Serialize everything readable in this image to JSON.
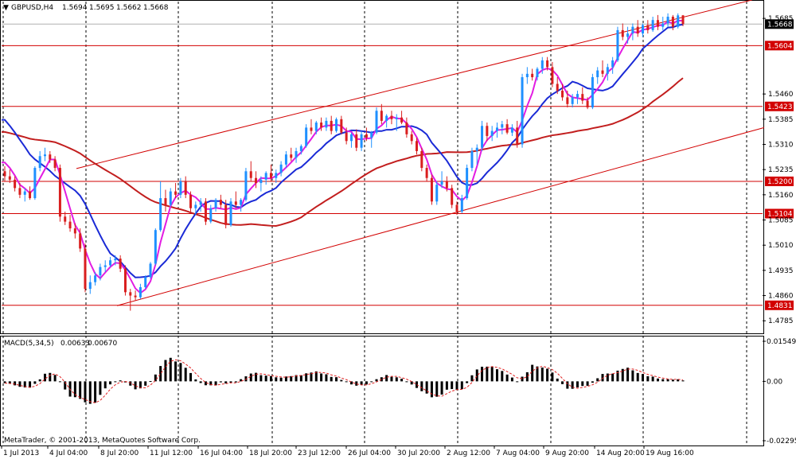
{
  "chart_data": [
    {
      "type": "candlestick",
      "title": "GBPUSD,H4",
      "ohlc_header": [
        "1.5694",
        "1.5695",
        "1.5662",
        "1.5668"
      ],
      "ylim": [
        1.475,
        1.5735
      ],
      "yticks": [
        "1.5685",
        "1.5460",
        "1.5385",
        "1.5310",
        "1.5235",
        "1.5160",
        "1.5085",
        "1.5010",
        "1.4935",
        "1.4860",
        "1.4785"
      ],
      "xticks": [
        "1 Jul 2013",
        "4 Jul 04:00",
        "8 Jul 20:00",
        "11 Jul 12:00",
        "16 Jul 04:00",
        "18 Jul 20:00",
        "23 Jul 12:00",
        "26 Jul 04:00",
        "30 Jul 20:00",
        "2 Aug 12:00",
        "7 Aug 04:00",
        "9 Aug 20:00",
        "14 Aug 20:00",
        "19 Aug 16:00"
      ],
      "current_price": "1.5668",
      "horizontal_levels": [
        "1.5604",
        "1.5423",
        "1.5200",
        "1.5104",
        "1.4831"
      ],
      "trend_channel": [
        {
          "from": [
            "4 Jul",
            1.5238
          ],
          "to": [
            "21 Aug",
            1.574
          ]
        },
        {
          "from": [
            "8 Jul",
            1.483
          ],
          "to": [
            "21 Aug",
            1.536
          ]
        }
      ],
      "candles": [
        [
          1.523,
          1.5245,
          1.52,
          1.5215
        ],
        [
          1.5215,
          1.5235,
          1.5195,
          1.5205
        ],
        [
          1.5205,
          1.5215,
          1.517,
          1.518
        ],
        [
          1.518,
          1.5195,
          1.515,
          1.516
        ],
        [
          1.516,
          1.518,
          1.514,
          1.517
        ],
        [
          1.517,
          1.5185,
          1.5145,
          1.515
        ],
        [
          1.515,
          1.5245,
          1.5145,
          1.524
        ],
        [
          1.524,
          1.529,
          1.523,
          1.5275
        ],
        [
          1.5275,
          1.53,
          1.526,
          1.528
        ],
        [
          1.528,
          1.529,
          1.5255,
          1.5265
        ],
        [
          1.5265,
          1.5275,
          1.523,
          1.524
        ],
        [
          1.524,
          1.525,
          1.508,
          1.5095
        ],
        [
          1.5095,
          1.511,
          1.507,
          1.508
        ],
        [
          1.508,
          1.51,
          1.505,
          1.506
        ],
        [
          1.506,
          1.5075,
          1.503,
          1.5045
        ],
        [
          1.5045,
          1.506,
          1.499,
          1.5
        ],
        [
          1.5,
          1.5015,
          1.487,
          1.488
        ],
        [
          1.488,
          1.492,
          1.4865,
          1.49
        ],
        [
          1.49,
          1.493,
          1.489,
          1.492
        ],
        [
          1.492,
          1.4955,
          1.4905,
          1.4945
        ],
        [
          1.4945,
          1.4965,
          1.493,
          1.495
        ],
        [
          1.495,
          1.4975,
          1.4945,
          1.4965
        ],
        [
          1.4965,
          1.498,
          1.495,
          1.497
        ],
        [
          1.497,
          1.498,
          1.493,
          1.494
        ],
        [
          1.494,
          1.495,
          1.486,
          1.487
        ],
        [
          1.487,
          1.488,
          1.4815,
          1.486
        ],
        [
          1.486,
          1.4875,
          1.4845,
          1.4855
        ],
        [
          1.4855,
          1.4895,
          1.485,
          1.4885
        ],
        [
          1.4885,
          1.492,
          1.488,
          1.4915
        ],
        [
          1.4915,
          1.496,
          1.491,
          1.4955
        ],
        [
          1.4955,
          1.506,
          1.495,
          1.5055
        ],
        [
          1.5055,
          1.52,
          1.505,
          1.515
        ],
        [
          1.515,
          1.5175,
          1.511,
          1.513
        ],
        [
          1.513,
          1.518,
          1.5125,
          1.517
        ],
        [
          1.517,
          1.5195,
          1.515,
          1.516
        ],
        [
          1.516,
          1.521,
          1.515,
          1.52
        ],
        [
          1.52,
          1.5215,
          1.515,
          1.516
        ],
        [
          1.516,
          1.517,
          1.511,
          1.512
        ],
        [
          1.512,
          1.514,
          1.51,
          1.513
        ],
        [
          1.513,
          1.515,
          1.511,
          1.514
        ],
        [
          1.514,
          1.515,
          1.507,
          1.508
        ],
        [
          1.508,
          1.513,
          1.5075,
          1.512
        ],
        [
          1.512,
          1.515,
          1.511,
          1.5145
        ],
        [
          1.5145,
          1.516,
          1.512,
          1.513
        ],
        [
          1.513,
          1.5145,
          1.506,
          1.507
        ],
        [
          1.507,
          1.515,
          1.5065,
          1.514
        ],
        [
          1.514,
          1.517,
          1.512,
          1.513
        ],
        [
          1.513,
          1.515,
          1.511,
          1.5145
        ],
        [
          1.5145,
          1.524,
          1.514,
          1.523
        ],
        [
          1.523,
          1.526,
          1.52,
          1.521
        ],
        [
          1.521,
          1.523,
          1.518,
          1.5195
        ],
        [
          1.5195,
          1.5215,
          1.517,
          1.5205
        ],
        [
          1.5205,
          1.523,
          1.519,
          1.5225
        ],
        [
          1.5225,
          1.525,
          1.52,
          1.521
        ],
        [
          1.521,
          1.5235,
          1.5195,
          1.5225
        ],
        [
          1.5225,
          1.526,
          1.5215,
          1.525
        ],
        [
          1.525,
          1.529,
          1.524,
          1.528
        ],
        [
          1.528,
          1.53,
          1.526,
          1.527
        ],
        [
          1.527,
          1.53,
          1.5255,
          1.529
        ],
        [
          1.529,
          1.531,
          1.528,
          1.5305
        ],
        [
          1.5305,
          1.537,
          1.53,
          1.536
        ],
        [
          1.536,
          1.5385,
          1.534,
          1.535
        ],
        [
          1.535,
          1.538,
          1.534,
          1.5375
        ],
        [
          1.5375,
          1.539,
          1.535,
          1.536
        ],
        [
          1.536,
          1.539,
          1.535,
          1.538
        ],
        [
          1.538,
          1.5395,
          1.534,
          1.535
        ],
        [
          1.535,
          1.539,
          1.5345,
          1.5385
        ],
        [
          1.5385,
          1.5395,
          1.534,
          1.5345
        ],
        [
          1.5345,
          1.536,
          1.531,
          1.532
        ],
        [
          1.532,
          1.5345,
          1.53,
          1.534
        ],
        [
          1.534,
          1.5355,
          1.529,
          1.53
        ],
        [
          1.53,
          1.535,
          1.529,
          1.534
        ],
        [
          1.534,
          1.536,
          1.532,
          1.533
        ],
        [
          1.533,
          1.535,
          1.53,
          1.5345
        ],
        [
          1.5345,
          1.542,
          1.534,
          1.541
        ],
        [
          1.541,
          1.543,
          1.537,
          1.538
        ],
        [
          1.538,
          1.54,
          1.536,
          1.5395
        ],
        [
          1.5395,
          1.541,
          1.537,
          1.5385
        ],
        [
          1.5385,
          1.54,
          1.535,
          1.539
        ],
        [
          1.539,
          1.541,
          1.537,
          1.5375
        ],
        [
          1.5375,
          1.539,
          1.533,
          1.534
        ],
        [
          1.534,
          1.535,
          1.531,
          1.532
        ],
        [
          1.532,
          1.533,
          1.528,
          1.529
        ],
        [
          1.529,
          1.53,
          1.523,
          1.524
        ],
        [
          1.524,
          1.525,
          1.52,
          1.521
        ],
        [
          1.521,
          1.522,
          1.513,
          1.514
        ],
        [
          1.514,
          1.52,
          1.513,
          1.519
        ],
        [
          1.519,
          1.523,
          1.518,
          1.52
        ],
        [
          1.52,
          1.5215,
          1.517,
          1.518
        ],
        [
          1.518,
          1.519,
          1.512,
          1.513
        ],
        [
          1.513,
          1.514,
          1.51,
          1.511
        ],
        [
          1.511,
          1.516,
          1.5105,
          1.515
        ],
        [
          1.515,
          1.525,
          1.5145,
          1.524
        ],
        [
          1.524,
          1.53,
          1.523,
          1.529
        ],
        [
          1.529,
          1.531,
          1.525,
          1.53
        ],
        [
          1.53,
          1.538,
          1.529,
          1.5365
        ],
        [
          1.5365,
          1.5375,
          1.532,
          1.5335
        ],
        [
          1.5335,
          1.5365,
          1.532,
          1.535
        ],
        [
          1.535,
          1.5375,
          1.533,
          1.536
        ],
        [
          1.536,
          1.538,
          1.534,
          1.537
        ],
        [
          1.537,
          1.5385,
          1.534,
          1.5345
        ],
        [
          1.5345,
          1.537,
          1.5335,
          1.536
        ],
        [
          1.536,
          1.538,
          1.53,
          1.531
        ],
        [
          1.531,
          1.552,
          1.53,
          1.551
        ],
        [
          1.551,
          1.554,
          1.549,
          1.552
        ],
        [
          1.552,
          1.5535,
          1.55,
          1.551
        ],
        [
          1.551,
          1.554,
          1.55,
          1.5535
        ],
        [
          1.5535,
          1.557,
          1.552,
          1.556
        ],
        [
          1.556,
          1.557,
          1.553,
          1.554
        ],
        [
          1.554,
          1.5555,
          1.548,
          1.549
        ],
        [
          1.549,
          1.551,
          1.546,
          1.547
        ],
        [
          1.547,
          1.549,
          1.544,
          1.545
        ],
        [
          1.545,
          1.547,
          1.542,
          1.543
        ],
        [
          1.543,
          1.546,
          1.542,
          1.545
        ],
        [
          1.545,
          1.547,
          1.543,
          1.546
        ],
        [
          1.546,
          1.548,
          1.543,
          1.544
        ],
        [
          1.544,
          1.545,
          1.5415,
          1.542
        ],
        [
          1.542,
          1.552,
          1.5415,
          1.551
        ],
        [
          1.551,
          1.554,
          1.549,
          1.553
        ],
        [
          1.553,
          1.556,
          1.551,
          1.552
        ],
        [
          1.552,
          1.555,
          1.55,
          1.554
        ],
        [
          1.554,
          1.557,
          1.552,
          1.556
        ],
        [
          1.556,
          1.566,
          1.5555,
          1.565
        ],
        [
          1.565,
          1.567,
          1.562,
          1.563
        ],
        [
          1.563,
          1.566,
          1.561,
          1.564
        ],
        [
          1.564,
          1.567,
          1.562,
          1.566
        ],
        [
          1.566,
          1.568,
          1.563,
          1.564
        ],
        [
          1.564,
          1.567,
          1.563,
          1.5665
        ],
        [
          1.5665,
          1.568,
          1.564,
          1.565
        ],
        [
          1.565,
          1.569,
          1.5645,
          1.568
        ],
        [
          1.568,
          1.5695,
          1.565,
          1.566
        ],
        [
          1.566,
          1.569,
          1.565,
          1.567
        ],
        [
          1.567,
          1.57,
          1.566,
          1.569
        ],
        [
          1.569,
          1.5695,
          1.565,
          1.566
        ],
        [
          1.566,
          1.57,
          1.5655,
          1.5694
        ],
        [
          1.5694,
          1.5695,
          1.5662,
          1.5668
        ]
      ],
      "ma_periods": [
        20,
        50,
        200
      ],
      "colors": {
        "up": "#1e90ff",
        "down": "#d91e1e",
        "ma_fast": "#e21ce2",
        "ma_mid": "#1a2ad6",
        "ma_slow": "#c21e1e",
        "level": "#d20000",
        "grid": "#000000",
        "macd_signal": "#e02020"
      }
    },
    {
      "type": "histogram",
      "title": "MACD(5,34,5)",
      "values_header": [
        "0.00633",
        "0.00670"
      ],
      "yticks": [
        "0.01549",
        "0.00",
        "-0.02295"
      ],
      "ylim": [
        -0.02295,
        0.01549
      ],
      "source": "MetaTrader, © 2001-2013, MetaQuotes Software Corp."
    }
  ]
}
